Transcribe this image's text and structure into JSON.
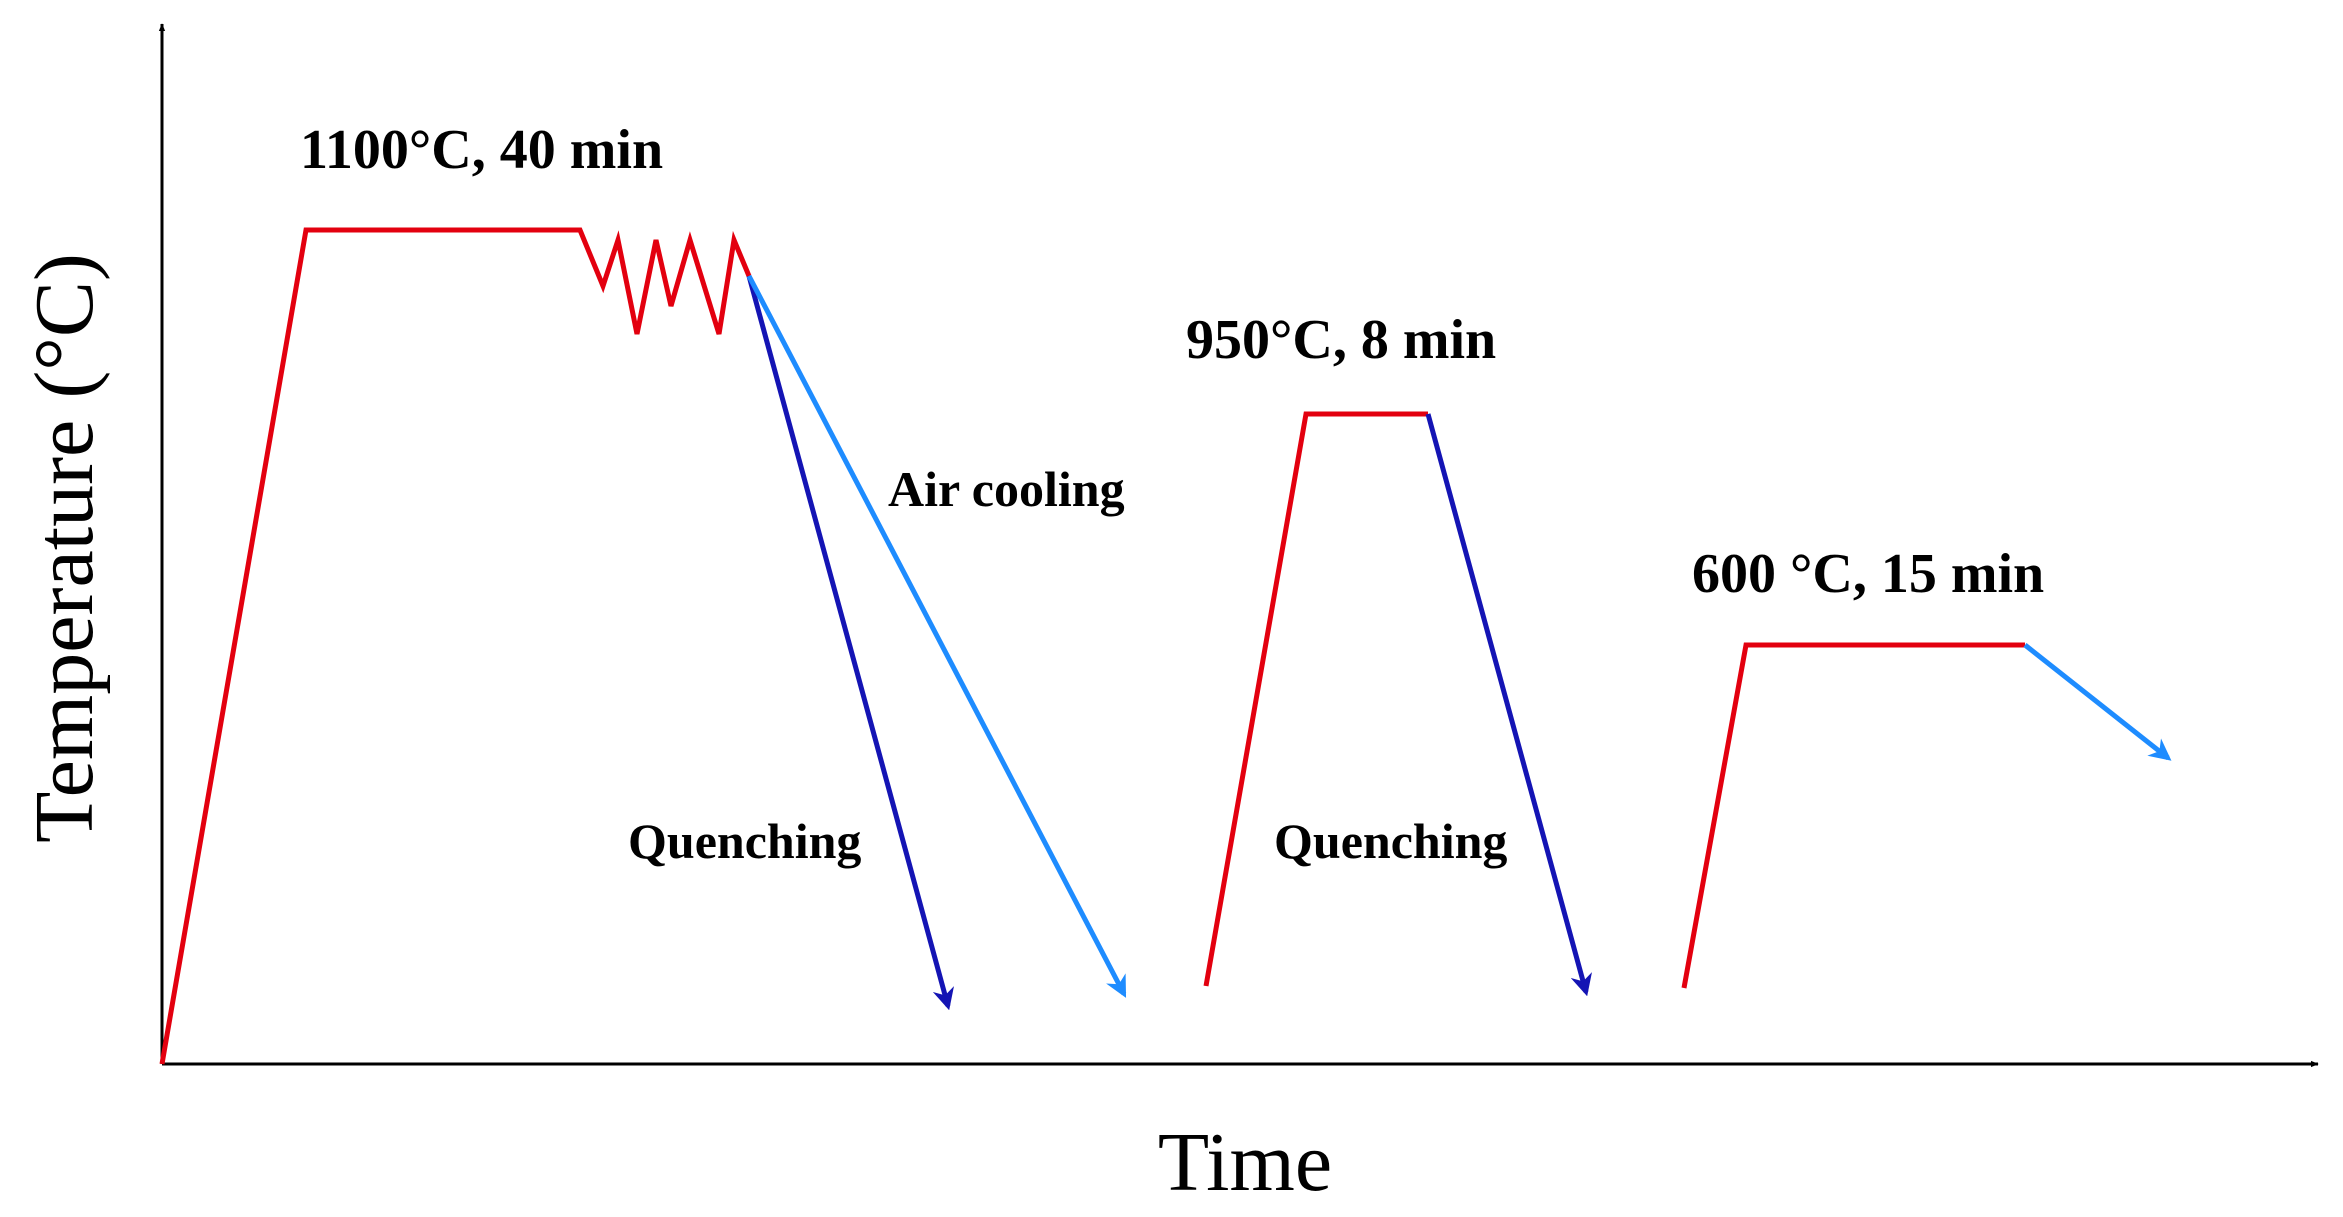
{
  "diagram": {
    "y_axis_label": "Temperature (°C)",
    "x_axis_label": "Time",
    "stages": [
      {
        "label": "1100°C, 40 min"
      },
      {
        "label": "950°C, 8 min"
      },
      {
        "label": "600 °C, 15 min"
      }
    ],
    "annotations": {
      "air_cooling": "Air cooling",
      "quenching_1": "Quenching",
      "quenching_2": "Quenching"
    },
    "colors": {
      "heating": "#e3000f",
      "quench": "#1414b4",
      "air_cool": "#1e8cff",
      "axis": "#000000"
    }
  }
}
